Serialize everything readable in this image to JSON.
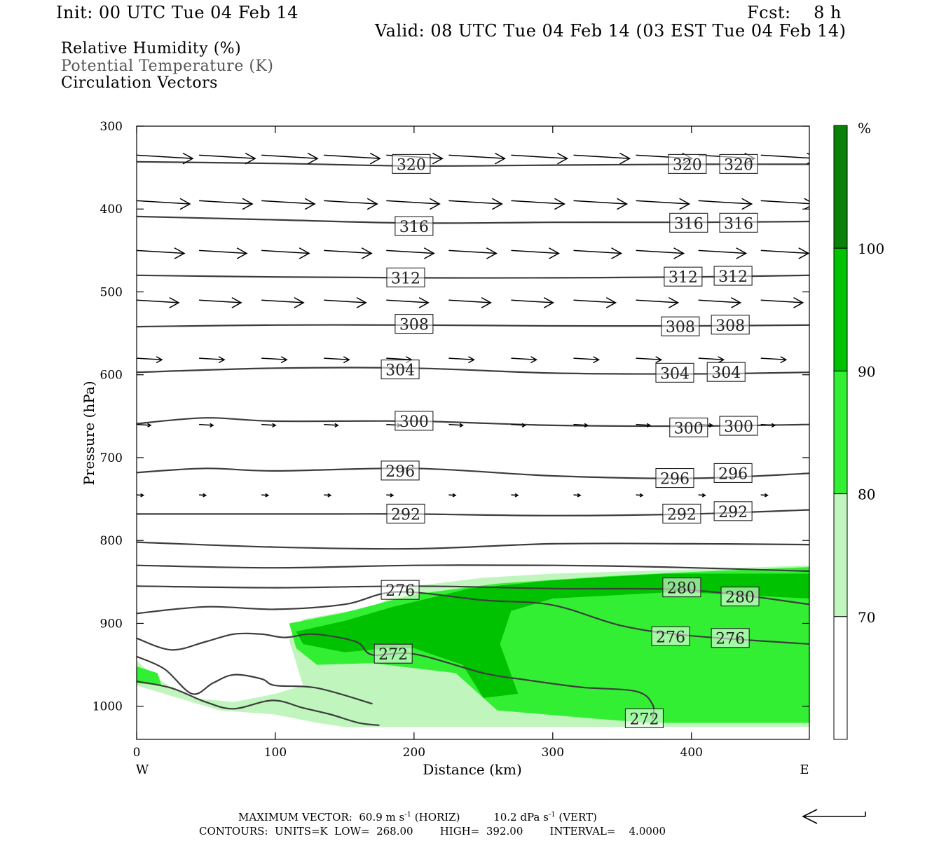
{
  "header": {
    "init": "Init: 00 UTC Tue 04 Feb 14",
    "fcst": "Fcst:    8 h",
    "valid": "Valid: 08 UTC Tue 04 Feb 14 (03 EST Tue 04 Feb 14)"
  },
  "legend": {
    "rh": "Relative Humidity (%)",
    "theta": "Potential Temperature (K)",
    "vectors": "Circulation Vectors"
  },
  "footer": {
    "max_vector_label": "MAXIMUM VECTOR:",
    "horiz_value": "60.9 m s",
    "horiz_unit": "(HORIZ)",
    "vert_value": "10.2 dPa s",
    "vert_unit": "(VERT)",
    "exponent": "-1",
    "contours": "CONTOURS:  UNITS=K  LOW=  268.00        HIGH=  392.00        INTERVAL=    4.0000"
  },
  "colors": {
    "rh_70_80": "#c0f5bd",
    "rh_80_90": "#33ef33",
    "rh_90_100": "#00c200",
    "rh_100": "#0a820a",
    "contour": "#3c3c3c",
    "vector": "#000000"
  },
  "chart_data": {
    "type": "cross-section",
    "xlabel": "Distance (km)",
    "ylabel": "Pressure (hPa)",
    "xlim": [
      0,
      485
    ],
    "ylim": [
      1040,
      300
    ],
    "x_ticks": [
      0,
      100,
      200,
      300,
      400
    ],
    "y_ticks": [
      300,
      400,
      500,
      600,
      700,
      800,
      900,
      1000
    ],
    "x_end_labels": [
      "W",
      "E"
    ],
    "colorbar": {
      "unit": "%",
      "levels": [
        70,
        80,
        90,
        100
      ],
      "tick_labels": [
        "70",
        "80",
        "90",
        "100"
      ]
    },
    "theta_contours": [
      {
        "value": 320,
        "label": "320",
        "points": [
          [
            0,
            343
          ],
          [
            100,
            345
          ],
          [
            200,
            348
          ],
          [
            300,
            347
          ],
          [
            400,
            346
          ],
          [
            485,
            346
          ]
        ],
        "labels_at": [
          [
            198,
            346
          ],
          [
            397,
            346
          ],
          [
            434,
            346
          ]
        ]
      },
      {
        "value": 316,
        "label": "316",
        "points": [
          [
            0,
            409
          ],
          [
            100,
            413
          ],
          [
            200,
            417
          ],
          [
            300,
            416
          ],
          [
            400,
            416
          ],
          [
            485,
            415
          ]
        ],
        "labels_at": [
          [
            200,
            421
          ],
          [
            398,
            417
          ],
          [
            434,
            417
          ]
        ]
      },
      {
        "value": 312,
        "label": "312",
        "points": [
          [
            0,
            480
          ],
          [
            100,
            482
          ],
          [
            200,
            483
          ],
          [
            300,
            483
          ],
          [
            400,
            482
          ],
          [
            485,
            480
          ]
        ],
        "labels_at": [
          [
            194,
            483
          ],
          [
            394,
            482
          ],
          [
            430,
            481
          ]
        ]
      },
      {
        "value": 308,
        "label": "308",
        "points": [
          [
            0,
            542
          ],
          [
            100,
            540
          ],
          [
            200,
            540
          ],
          [
            300,
            541
          ],
          [
            400,
            541
          ],
          [
            485,
            540
          ]
        ],
        "labels_at": [
          [
            200,
            539
          ],
          [
            392,
            542
          ],
          [
            428,
            540
          ]
        ]
      },
      {
        "value": 304,
        "label": "304",
        "points": [
          [
            0,
            597
          ],
          [
            100,
            592
          ],
          [
            200,
            592
          ],
          [
            300,
            598
          ],
          [
            400,
            599
          ],
          [
            485,
            597
          ]
        ],
        "labels_at": [
          [
            190,
            594
          ],
          [
            388,
            598
          ],
          [
            425,
            597
          ]
        ]
      },
      {
        "value": 300,
        "label": "300",
        "points": [
          [
            0,
            659
          ],
          [
            50,
            652
          ],
          [
            100,
            656
          ],
          [
            200,
            656
          ],
          [
            300,
            661
          ],
          [
            400,
            662
          ],
          [
            485,
            660
          ]
        ],
        "labels_at": [
          [
            200,
            656
          ],
          [
            398,
            664
          ],
          [
            434,
            662
          ]
        ]
      },
      {
        "value": 296,
        "label": "296",
        "points": [
          [
            0,
            718
          ],
          [
            50,
            713
          ],
          [
            100,
            716
          ],
          [
            200,
            713
          ],
          [
            300,
            722
          ],
          [
            400,
            725
          ],
          [
            485,
            719
          ]
        ],
        "labels_at": [
          [
            190,
            716
          ],
          [
            388,
            725
          ],
          [
            430,
            719
          ]
        ]
      },
      {
        "value": 292,
        "label": "292",
        "points": [
          [
            0,
            768
          ],
          [
            100,
            768
          ],
          [
            140,
            768
          ],
          [
            200,
            768
          ],
          [
            300,
            770
          ],
          [
            400,
            768
          ],
          [
            485,
            763
          ]
        ],
        "labels_at": [
          [
            194,
            768
          ],
          [
            393,
            768
          ],
          [
            430,
            765
          ]
        ]
      },
      {
        "value": 288,
        "label": "",
        "points": [
          [
            0,
            802
          ],
          [
            100,
            808
          ],
          [
            200,
            810
          ],
          [
            300,
            804
          ],
          [
            400,
            804
          ],
          [
            485,
            805
          ]
        ],
        "labels_at": []
      },
      {
        "value": 284,
        "label": "",
        "points": [
          [
            0,
            830
          ],
          [
            100,
            833
          ],
          [
            200,
            830
          ],
          [
            300,
            830
          ],
          [
            380,
            832
          ],
          [
            485,
            837
          ]
        ],
        "labels_at": []
      },
      {
        "value": 280,
        "label": "280",
        "points": [
          [
            0,
            855
          ],
          [
            100,
            857
          ],
          [
            200,
            855
          ],
          [
            300,
            858
          ],
          [
            400,
            860
          ],
          [
            485,
            877
          ]
        ],
        "labels_at": [
          [
            393,
            857
          ],
          [
            435,
            868
          ]
        ]
      },
      {
        "value": 276,
        "label": "276",
        "points": [
          [
            0,
            888
          ],
          [
            50,
            880
          ],
          [
            100,
            883
          ],
          [
            150,
            877
          ],
          [
            188,
            862
          ],
          [
            250,
            872
          ],
          [
            300,
            878
          ],
          [
            350,
            903
          ],
          [
            400,
            915
          ],
          [
            485,
            925
          ]
        ],
        "labels_at": [
          [
            190,
            860
          ],
          [
            385,
            916
          ],
          [
            428,
            918
          ]
        ]
      },
      {
        "value": 272,
        "label": "272",
        "points": [
          [
            0,
            918
          ],
          [
            25,
            932
          ],
          [
            50,
            922
          ],
          [
            70,
            913
          ],
          [
            90,
            913
          ],
          [
            107,
            917
          ],
          [
            128,
            913
          ],
          [
            158,
            922
          ],
          [
            170,
            938
          ],
          [
            200,
            937
          ],
          [
            250,
            960
          ],
          [
            280,
            968
          ],
          [
            320,
            977
          ],
          [
            360,
            982
          ],
          [
            372,
            998
          ],
          [
            372,
            1015
          ]
        ],
        "labels_at": [
          [
            185,
            937
          ],
          [
            366,
            1015
          ]
        ]
      },
      {
        "value": 268,
        "label": "",
        "points": [
          [
            0,
            940
          ],
          [
            20,
            955
          ],
          [
            40,
            985
          ],
          [
            55,
            972
          ],
          [
            70,
            962
          ],
          [
            90,
            967
          ],
          [
            100,
            975
          ],
          [
            130,
            978
          ],
          [
            170,
            997
          ]
        ],
        "labels_at": []
      },
      {
        "value": 264,
        "label": "",
        "points": [
          [
            0,
            970
          ],
          [
            25,
            978
          ],
          [
            50,
            995
          ],
          [
            70,
            1003
          ],
          [
            98,
            993
          ],
          [
            120,
            1002
          ],
          [
            140,
            1010
          ],
          [
            160,
            1020
          ],
          [
            175,
            1023
          ]
        ],
        "labels_at": []
      }
    ],
    "rh_regions": [
      {
        "level": "70-80",
        "points": [
          [
            0,
            945
          ],
          [
            10,
            960
          ],
          [
            20,
            972
          ],
          [
            40,
            990
          ],
          [
            70,
            995
          ],
          [
            100,
            985
          ],
          [
            120,
            975
          ],
          [
            110,
            920
          ],
          [
            120,
            895
          ],
          [
            170,
            880
          ],
          [
            200,
            855
          ],
          [
            250,
            845
          ],
          [
            300,
            840
          ],
          [
            400,
            835
          ],
          [
            485,
            830
          ],
          [
            485,
            1025
          ],
          [
            150,
            1025
          ],
          [
            130,
            1020
          ],
          [
            100,
            1010
          ],
          [
            60,
            1005
          ],
          [
            20,
            985
          ],
          [
            0,
            975
          ]
        ]
      },
      {
        "level": "80-90",
        "points": [
          [
            0,
            952
          ],
          [
            15,
            960
          ],
          [
            18,
            975
          ],
          [
            0,
            972
          ]
        ]
      },
      {
        "level": "80-90",
        "points": [
          [
            110,
            900
          ],
          [
            150,
            887
          ],
          [
            200,
            865
          ],
          [
            260,
            852
          ],
          [
            340,
            843
          ],
          [
            400,
            838
          ],
          [
            485,
            832
          ],
          [
            485,
            1020
          ],
          [
            370,
            1020
          ],
          [
            330,
            1015
          ],
          [
            260,
            1005
          ],
          [
            230,
            960
          ],
          [
            170,
            948
          ],
          [
            130,
            950
          ],
          [
            115,
            930
          ]
        ]
      },
      {
        "level": "90-100",
        "points": [
          [
            115,
            910
          ],
          [
            150,
            897
          ],
          [
            185,
            880
          ],
          [
            240,
            858
          ],
          [
            300,
            848
          ],
          [
            380,
            840
          ],
          [
            485,
            840
          ],
          [
            485,
            870
          ],
          [
            390,
            862
          ],
          [
            300,
            870
          ],
          [
            270,
            885
          ],
          [
            262,
            925
          ],
          [
            275,
            985
          ],
          [
            250,
            990
          ],
          [
            235,
            950
          ],
          [
            200,
            930
          ],
          [
            180,
            930
          ],
          [
            150,
            935
          ],
          [
            120,
            925
          ]
        ]
      }
    ],
    "vectors": {
      "max_horiz": "60.9 m s-1",
      "max_vert": "10.2 dPa s-1",
      "rows": [
        {
          "p": 335,
          "x": [
            0,
            45,
            90,
            135,
            180,
            225,
            270,
            315,
            360,
            405,
            450
          ],
          "u": 1.0,
          "w": 0.0
        },
        {
          "p": 390,
          "x": [
            0,
            45,
            90,
            135,
            180,
            225,
            270,
            315,
            360,
            405,
            450
          ],
          "u": 0.95,
          "w": 0.0
        },
        {
          "p": 450,
          "x": [
            0,
            45,
            90,
            135,
            180,
            225,
            270,
            315,
            360,
            405,
            450
          ],
          "u": 0.85,
          "w": 0.0
        },
        {
          "p": 510,
          "x": [
            0,
            45,
            90,
            135,
            180,
            225,
            270,
            315,
            360,
            405,
            450
          ],
          "u": 0.75,
          "w": 0.0
        },
        {
          "p": 580,
          "x": [
            0,
            45,
            90,
            135,
            180,
            225,
            270,
            315,
            360,
            405,
            450
          ],
          "u": 0.45,
          "w": 0.0
        },
        {
          "p": 660,
          "x": [
            0,
            45,
            90,
            135,
            180,
            225,
            270,
            315,
            360,
            405,
            450
          ],
          "u": 0.25,
          "w": 0.0
        },
        {
          "p": 745,
          "x": [
            0,
            45,
            90,
            135,
            180,
            225,
            270,
            315,
            360,
            405,
            450
          ],
          "u": 0.12,
          "w": 0.0
        }
      ]
    }
  }
}
